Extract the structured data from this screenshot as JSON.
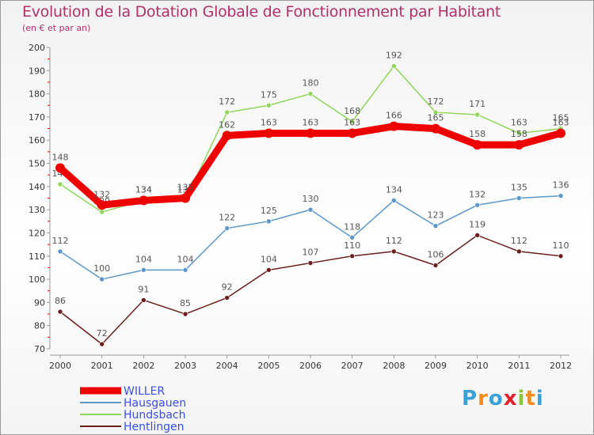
{
  "chart_data": {
    "type": "line",
    "title": "Evolution de la Dotation Globale de Fonctionnement par Habitant",
    "subtitle": "(en € et par an)",
    "x": [
      "2000",
      "2001",
      "2002",
      "2003",
      "2004",
      "2005",
      "2006",
      "2007",
      "2008",
      "2009",
      "2010",
      "2011",
      "2012"
    ],
    "ylim": [
      70,
      200
    ],
    "yticks": [
      70,
      80,
      90,
      100,
      110,
      120,
      130,
      140,
      150,
      160,
      170,
      180,
      190,
      200
    ],
    "series": [
      {
        "name": "Hentlingen",
        "color": "#6b1f1f",
        "values": [
          86,
          72,
          91,
          85,
          92,
          104,
          107,
          110,
          112,
          106,
          119,
          112,
          110
        ]
      },
      {
        "name": "Hausgauen",
        "color": "#5b97c9",
        "values": [
          112,
          100,
          104,
          104,
          122,
          125,
          130,
          118,
          134,
          123,
          132,
          135,
          136
        ]
      },
      {
        "name": "Hundsbach",
        "color": "#8fd65a",
        "values": [
          141,
          129,
          134,
          134,
          172,
          175,
          180,
          168,
          192,
          172,
          171,
          163,
          165
        ]
      },
      {
        "name": "WILLER",
        "color": "#ee0000",
        "values": [
          148,
          132,
          134,
          135,
          162,
          163,
          163,
          163,
          166,
          165,
          158,
          158,
          163
        ]
      }
    ],
    "legend_order": [
      "WILLER",
      "Hausgauen",
      "Hundsbach",
      "Hentlingen"
    ],
    "legend_label_color": "#3b4fe0",
    "grid": false,
    "legend_position": "bottom-left"
  },
  "logo": {
    "letters": [
      "P",
      "r",
      "o",
      "x",
      "i",
      "t",
      "i"
    ],
    "colors": [
      "#3aa0d8",
      "#f28c1e",
      "#3aa0d8",
      "#e0202a",
      "#8bc53f",
      "#f28c1e",
      "#3aa0d8"
    ]
  }
}
